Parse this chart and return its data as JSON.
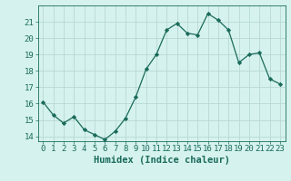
{
  "x": [
    0,
    1,
    2,
    3,
    4,
    5,
    6,
    7,
    8,
    9,
    10,
    11,
    12,
    13,
    14,
    15,
    16,
    17,
    18,
    19,
    20,
    21,
    22,
    23
  ],
  "y": [
    16.1,
    15.3,
    14.8,
    15.2,
    14.4,
    14.1,
    13.8,
    14.3,
    15.1,
    16.4,
    18.1,
    19.0,
    20.5,
    20.9,
    20.3,
    20.2,
    21.5,
    21.1,
    20.5,
    18.5,
    19.0,
    19.1,
    17.5,
    17.2
  ],
  "xlabel": "Humidex (Indice chaleur)",
  "ylim": [
    13.7,
    22.0
  ],
  "xlim": [
    -0.5,
    23.5
  ],
  "yticks": [
    14,
    15,
    16,
    17,
    18,
    19,
    20,
    21
  ],
  "xticks": [
    0,
    1,
    2,
    3,
    4,
    5,
    6,
    7,
    8,
    9,
    10,
    11,
    12,
    13,
    14,
    15,
    16,
    17,
    18,
    19,
    20,
    21,
    22,
    23
  ],
  "line_color": "#1a6b5a",
  "marker": "D",
  "marker_size": 2.2,
  "bg_color": "#d5f2ee",
  "grid_color": "#b8d8d4",
  "text_color": "#1a6b5a",
  "tick_label_fontsize": 6.5,
  "xlabel_fontsize": 7.5
}
